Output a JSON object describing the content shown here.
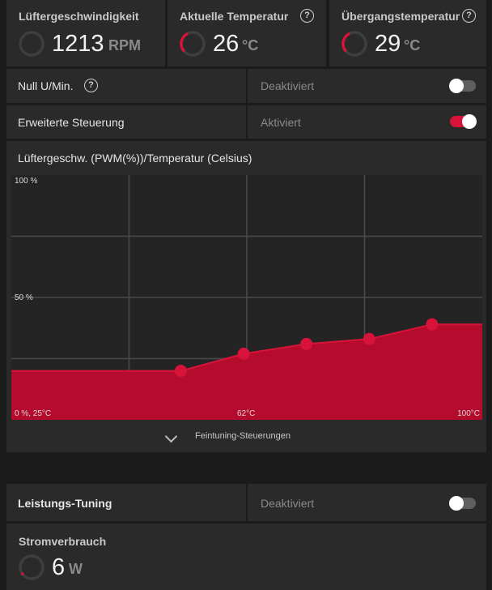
{
  "metrics": [
    {
      "title": "Lüftergeschwindigkeit",
      "value": "1213",
      "unit": "RPM",
      "gauge_fraction": 0.0
    },
    {
      "title": "Aktuelle Temperatur",
      "value": "26",
      "unit": "°C",
      "gauge_fraction": 0.18
    },
    {
      "title": "Übergangstemperatur",
      "value": "29",
      "unit": "°C",
      "gauge_fraction": 0.18
    }
  ],
  "zero_rpm": {
    "label": "Null U/Min.",
    "status": "Deaktiviert",
    "enabled": false
  },
  "advanced_control": {
    "label": "Erweiterte Steuerung",
    "status": "Aktiviert",
    "enabled": true
  },
  "curve": {
    "title": "Lüftergeschw. (PWM(%))/Temperatur (Celsius)",
    "y_top_label": "100 %",
    "y_mid_label": "50 %",
    "x_left_label": "0 %, 25°C",
    "x_mid_label": "62°C",
    "x_right_label": "100°C",
    "fine_tuning": "Feintuning-Steuerungen"
  },
  "chart_data": {
    "type": "area",
    "xlabel": "",
    "ylabel": "",
    "xlim": [
      25,
      100
    ],
    "ylim": [
      0,
      100
    ],
    "x": [
      25,
      52,
      62,
      72,
      82,
      92,
      100
    ],
    "y": [
      20,
      20,
      27,
      31,
      33,
      39,
      39
    ],
    "points": [
      {
        "x": 52,
        "y": 20
      },
      {
        "x": 62,
        "y": 27
      },
      {
        "x": 72,
        "y": 31
      },
      {
        "x": 82,
        "y": 33
      },
      {
        "x": 92,
        "y": 39
      }
    ],
    "grid": true,
    "color": "#b50c2e"
  },
  "performance_tuning": {
    "label": "Leistungs-Tuning",
    "status": "Deaktiviert",
    "enabled": false
  },
  "power": {
    "title": "Stromverbrauch",
    "value": "6",
    "unit": "W",
    "gauge_fraction": 0.05
  },
  "colors": {
    "accent": "#d7133a",
    "curve_fill": "#b50c2e",
    "panel": "#2a2a2a",
    "background": "#1b1b1b"
  },
  "icons": {
    "help": "?",
    "chevron": "chevron-down-icon"
  }
}
